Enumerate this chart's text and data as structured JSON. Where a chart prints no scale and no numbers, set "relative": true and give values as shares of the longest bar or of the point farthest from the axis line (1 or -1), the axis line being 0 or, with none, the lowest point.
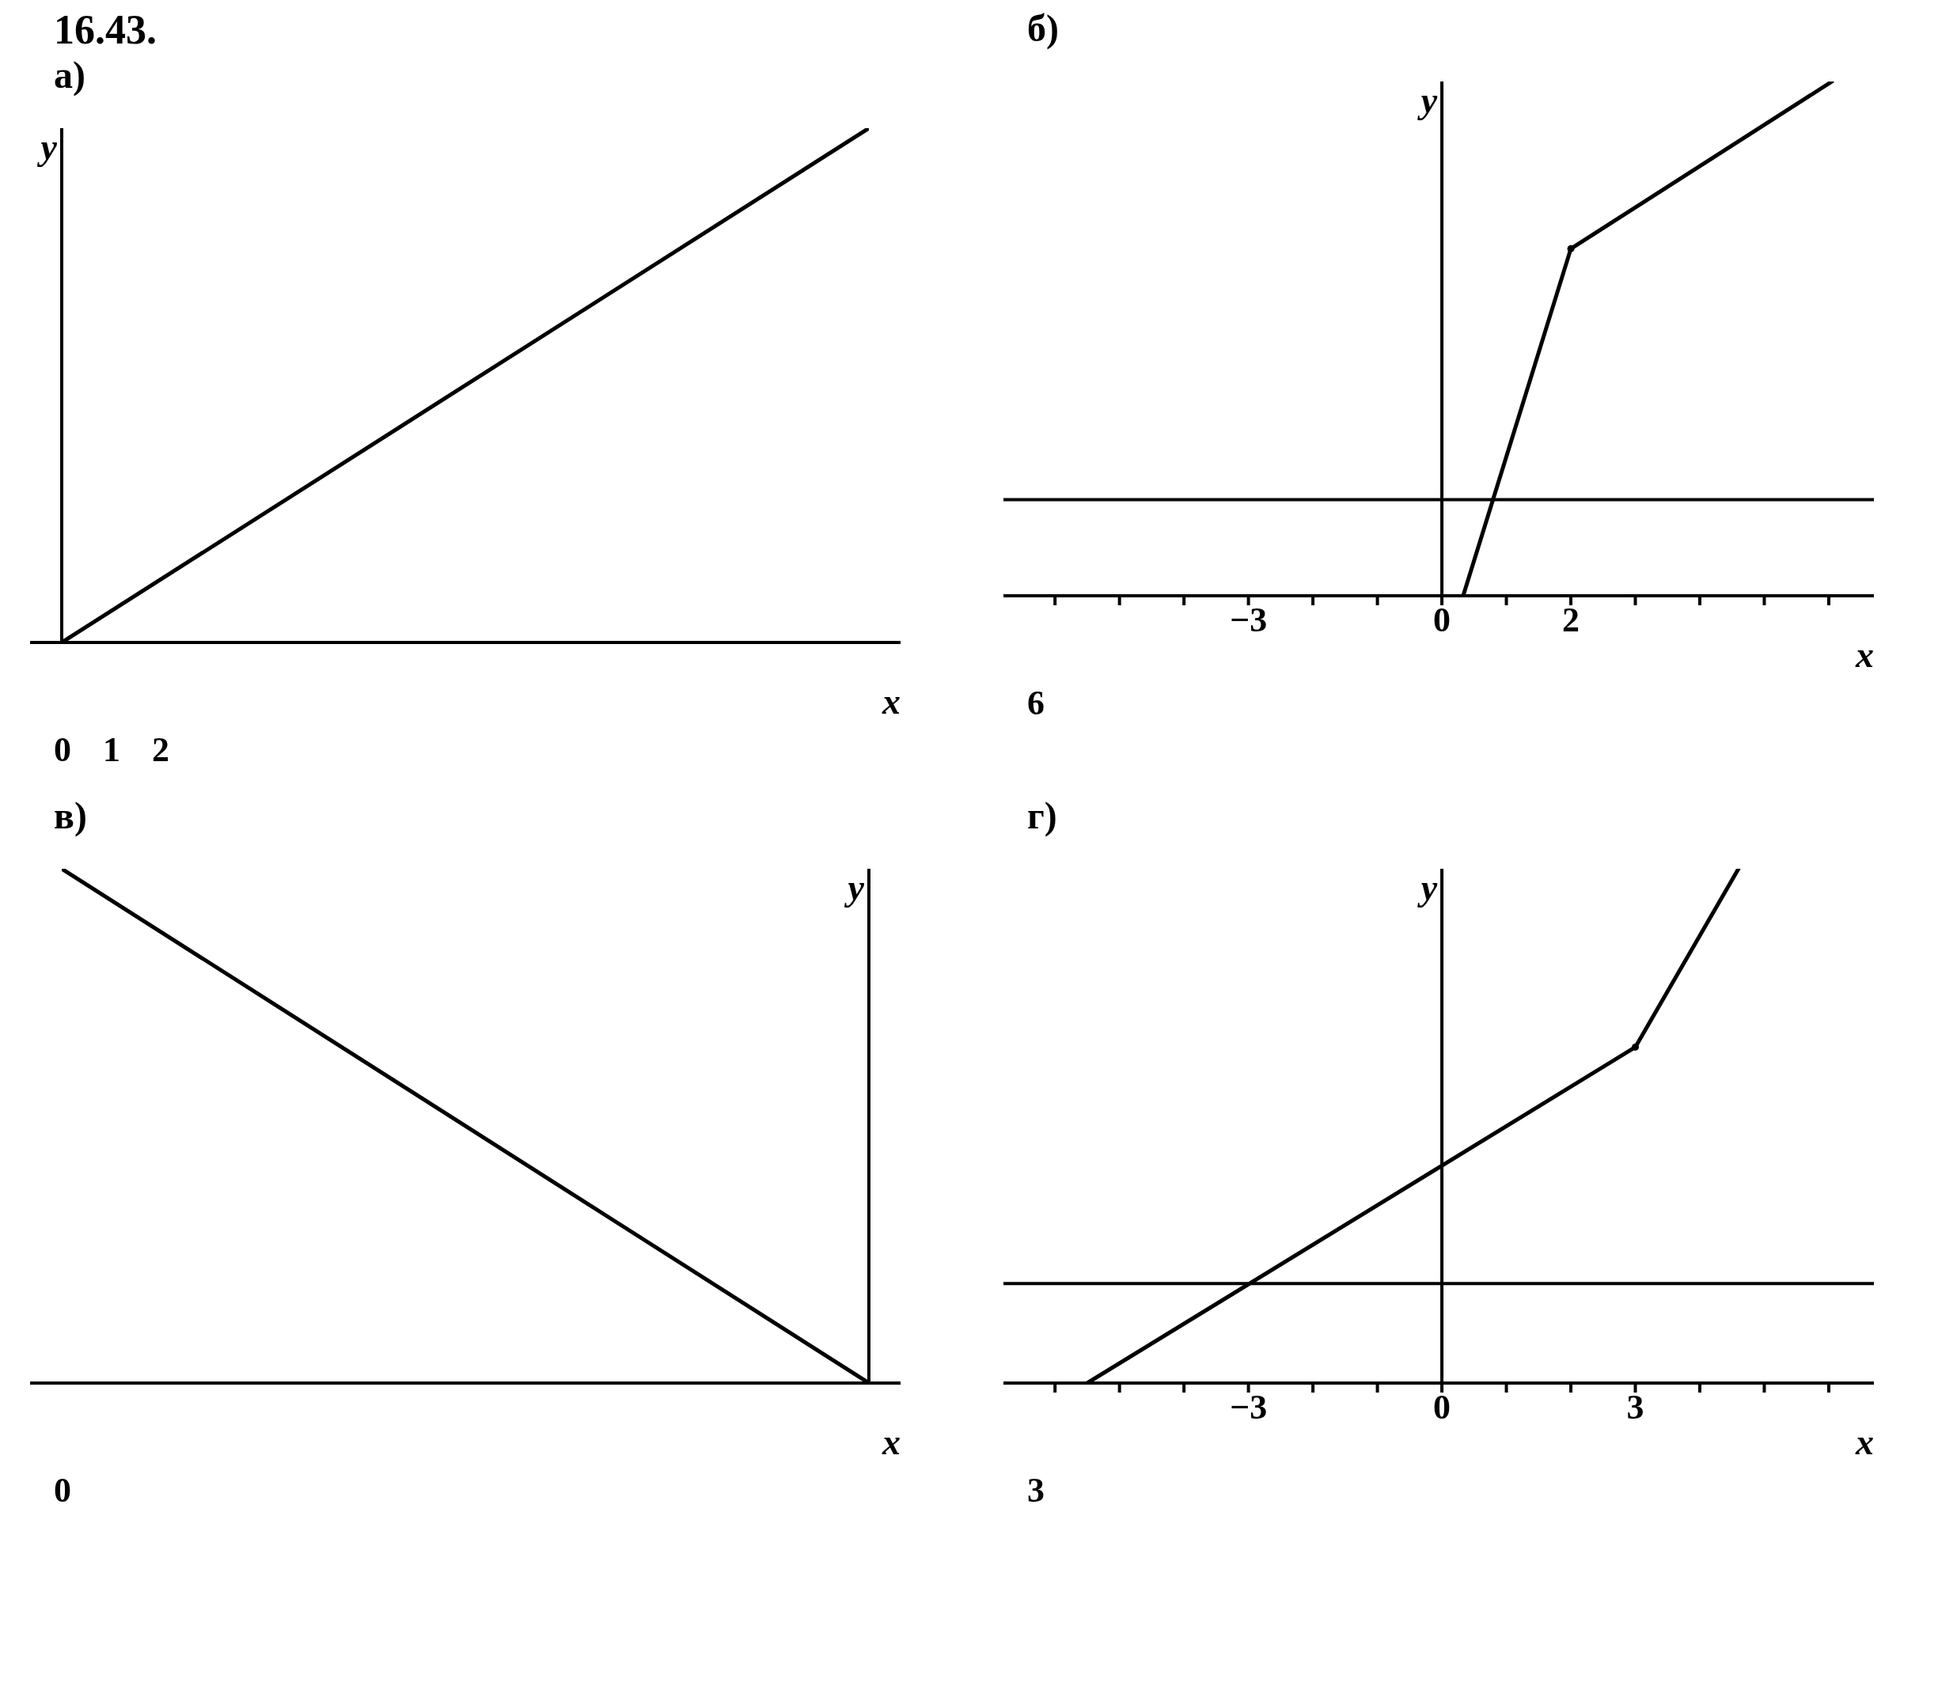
{
  "chart_data": [
    {
      "type": "line",
      "title": "16.43.",
      "subtitle": "а)",
      "xlabel": "x",
      "ylabel": "y",
      "relative": true,
      "categories": [
        null,
        null
      ],
      "annotations": [
        "0",
        "1",
        "2"
      ],
      "series": [
        {
          "color": "#000000",
          "values": [
            0,
            1
          ]
        }
      ]
    },
    {
      "type": "line",
      "subtitle": "б)",
      "xlabel": "x",
      "ylabel": "y",
      "relative": true,
      "xlim": [
        -6.8,
        6.7
      ],
      "xticks": [
        {
          "value": -6,
          "label": null
        },
        {
          "value": -5,
          "label": null
        },
        {
          "value": -4,
          "label": null
        },
        {
          "value": -3,
          "label": "−3"
        },
        {
          "value": -2,
          "label": null
        },
        {
          "value": -1,
          "label": null
        },
        {
          "value": 0,
          "label": "0"
        },
        {
          "value": 1,
          "label": null
        },
        {
          "value": 2,
          "label": "2"
        },
        {
          "value": 3,
          "label": null
        },
        {
          "value": 4,
          "label": null
        },
        {
          "value": 5,
          "label": null
        },
        {
          "value": 6,
          "label": null
        }
      ],
      "annotations": [
        "6"
      ],
      "series": [
        {
          "color": "#000000",
          "x": [
            0.33,
            2,
            6.05
          ],
          "values": [
            -0.23,
            0.6,
            1
          ]
        },
        {
          "type": "scatter",
          "color": "#000000",
          "x": [
            2
          ],
          "values": [
            0.6
          ]
        }
      ]
    },
    {
      "type": "line",
      "subtitle": "в)",
      "xlabel": "x",
      "ylabel": "y",
      "relative": true,
      "categories": [
        null,
        null
      ],
      "annotations": [
        "0"
      ],
      "series": [
        {
          "color": "#000000",
          "values": [
            1,
            0
          ]
        }
      ]
    },
    {
      "type": "line",
      "subtitle": "г)",
      "xlabel": "x",
      "ylabel": "y",
      "relative": true,
      "xlim": [
        -6.8,
        6.7
      ],
      "xticks": [
        {
          "value": -6,
          "label": null
        },
        {
          "value": -5,
          "label": null
        },
        {
          "value": -4,
          "label": null
        },
        {
          "value": -3,
          "label": "−3"
        },
        {
          "value": -2,
          "label": null
        },
        {
          "value": -1,
          "label": null
        },
        {
          "value": 0,
          "label": "0"
        },
        {
          "value": 1,
          "label": null
        },
        {
          "value": 2,
          "label": null
        },
        {
          "value": 3,
          "label": "3"
        },
        {
          "value": 4,
          "label": null
        },
        {
          "value": 5,
          "label": null
        },
        {
          "value": 6,
          "label": null
        }
      ],
      "annotations": [
        "3"
      ],
      "series": [
        {
          "color": "#000000",
          "x": [
            -5.5,
            3,
            4.6
          ],
          "values": [
            -0.24,
            0.57,
            1
          ]
        },
        {
          "type": "scatter",
          "color": "#000000",
          "x": [
            3
          ],
          "values": [
            0.57
          ]
        }
      ]
    }
  ]
}
